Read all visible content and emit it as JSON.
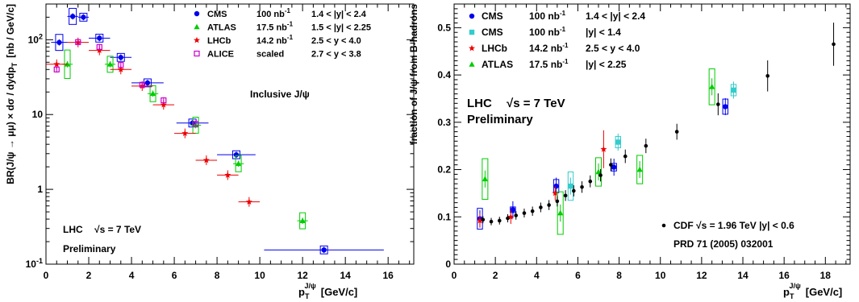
{
  "chart_data": [
    {
      "type": "scatter",
      "ylabel_main": "BR(J/ψ → μμ) × dσ / dydp",
      "ylabel_unit": "[nb / GeV/c]",
      "xlabel": "p",
      "xlabel_sup": "J/ψ",
      "xlabel_unit": "[GeV/c]",
      "xlim": [
        0,
        17.2
      ],
      "ylim": [
        0.1,
        300
      ],
      "yscale": "log",
      "x_ticks": [
        0,
        2,
        4,
        6,
        8,
        10,
        12,
        14,
        16
      ],
      "y_ticks": [
        {
          "value": 0.1,
          "base": "10",
          "exp": "-1"
        },
        {
          "value": 1,
          "label": "1"
        },
        {
          "value": 10,
          "label": "10"
        },
        {
          "value": 100,
          "base": "10",
          "exp": "2"
        }
      ],
      "legend": [
        {
          "exp": "CMS",
          "lumi": "100 nb",
          "lumi_exp": "-1",
          "range": "1.4 < |y| < 2.4",
          "color": "#0000ee",
          "marker": "circle"
        },
        {
          "exp": "ATLAS",
          "lumi": "17.5 nb",
          "lumi_exp": "-1",
          "range": "1.5 < |y| < 2.25",
          "color": "#00cc00",
          "marker": "triangle"
        },
        {
          "exp": "LHCb",
          "lumi": "14.2 nb",
          "lumi_exp": "-1",
          "range": "2.5 < y < 4.0",
          "color": "#ee0000",
          "marker": "star"
        },
        {
          "exp": "ALICE",
          "lumi": "scaled",
          "lumi_exp": "",
          "range": "2.7 < y < 3.8",
          "color": "#cc00cc",
          "marker": "open-square"
        }
      ],
      "annotations": {
        "inclusive": "Inclusive J/ψ",
        "lhc": "LHC",
        "energy": "√s = 7 TeV",
        "prelim": "Preliminary"
      },
      "series": [
        {
          "name": "CMS",
          "color": "#0000ee",
          "marker": "circle",
          "box": true,
          "points": [
            [
              0.62,
              92,
              0.38
            ],
            [
              1.25,
              205,
              0.25
            ],
            [
              1.75,
              200,
              0.25
            ],
            [
              2.5,
              105,
              0.5
            ],
            [
              3.5,
              58,
              0.5
            ],
            [
              4.75,
              26.5,
              0.75
            ],
            [
              6.85,
              7.7,
              0.75
            ],
            [
              8.9,
              2.9,
              0.9
            ],
            [
              13.0,
              0.155,
              2.8
            ]
          ]
        },
        {
          "name": "ATLAS",
          "color": "#00cc00",
          "marker": "triangle",
          "box": true,
          "points": [
            [
              1.0,
              47,
              0.25
            ],
            [
              3.0,
              47,
              0.25
            ],
            [
              5.0,
              19,
              0.25
            ],
            [
              7.0,
              7.2,
              0.25
            ],
            [
              9.0,
              2.2,
              0.25
            ],
            [
              12.0,
              0.38,
              0.25
            ]
          ]
        },
        {
          "name": "LHCb",
          "color": "#ee0000",
          "marker": "star",
          "box": false,
          "points": [
            [
              0.5,
              47,
              0.5
            ],
            [
              1.5,
              92,
              0.5
            ],
            [
              2.5,
              72,
              0.5
            ],
            [
              3.5,
              40,
              0.5
            ],
            [
              4.5,
              24,
              0.5
            ],
            [
              5.5,
              13.5,
              0.5
            ],
            [
              6.5,
              5.6,
              0.5
            ],
            [
              7.5,
              2.45,
              0.5
            ],
            [
              8.5,
              1.55,
              0.5
            ],
            [
              9.5,
              0.68,
              0.5
            ]
          ]
        },
        {
          "name": "ALICE",
          "color": "#cc00cc",
          "marker": "open-square",
          "box": false,
          "points": [
            [
              0.5,
              40,
              0
            ],
            [
              1.5,
              93,
              0
            ],
            [
              2.5,
              80,
              0
            ],
            [
              3.5,
              46,
              0
            ],
            [
              4.5,
              25,
              0
            ],
            [
              5.5,
              15.5,
              0
            ],
            [
              7.0,
              7.5,
              0
            ]
          ]
        }
      ]
    },
    {
      "type": "scatter",
      "ylabel": "fraction of J/ψ from B-hadrons",
      "xlabel": "p",
      "xlabel_sup": "J/ψ",
      "xlabel_unit": "[GeV/c]",
      "xlim": [
        0,
        19.2
      ],
      "ylim": [
        0,
        0.55
      ],
      "x_ticks": [
        0,
        2,
        4,
        6,
        8,
        10,
        12,
        14,
        16,
        18
      ],
      "y_ticks": [
        0,
        0.1,
        0.2,
        0.3,
        0.4,
        0.5
      ],
      "legend": [
        {
          "exp": "CMS",
          "lumi": "100 nb",
          "lumi_exp": "-1",
          "range": "1.4 < |y| < 2.4",
          "color": "#0000ee",
          "marker": "circle"
        },
        {
          "exp": "CMS",
          "lumi": "100 nb",
          "lumi_exp": "-1",
          "range": "|y| < 1.4",
          "color": "#33cccc",
          "marker": "square"
        },
        {
          "exp": "LHCb",
          "lumi": "14.2 nb",
          "lumi_exp": "-1",
          "range": "2.5 < y < 4.0",
          "color": "#ee0000",
          "marker": "star"
        },
        {
          "exp": "ATLAS",
          "lumi": "17.5 nb",
          "lumi_exp": "-1",
          "range": "|y| < 2.25",
          "color": "#00cc00",
          "marker": "triangle"
        }
      ],
      "annotations": {
        "lhc": "LHC",
        "energy": "√s = 7 TeV",
        "prelim": "Preliminary",
        "cdf": "CDF  √s = 1.96 TeV   |y| < 0.6",
        "ref": "PRD 71 (2005) 032001"
      },
      "series": [
        {
          "name": "CMS 1.4<|y|<2.4",
          "color": "#0000ee",
          "marker": "circle",
          "box": true,
          "points": [
            [
              1.25,
              0.096
            ],
            [
              2.85,
              0.115
            ],
            [
              4.95,
              0.165
            ],
            [
              7.75,
              0.205
            ],
            [
              13.15,
              0.333
            ]
          ]
        },
        {
          "name": "CMS |y|<1.4",
          "color": "#33cccc",
          "marker": "square",
          "box": true,
          "points": [
            [
              5.65,
              0.165
            ],
            [
              7.95,
              0.258
            ],
            [
              13.55,
              0.368
            ]
          ]
        },
        {
          "name": "LHCb",
          "color": "#ee0000",
          "marker": "star",
          "box": false,
          "points": [
            [
              1.25,
              0.092
            ],
            [
              2.75,
              0.1
            ],
            [
              4.9,
              0.15
            ],
            [
              7.25,
              0.243
            ]
          ]
        },
        {
          "name": "ATLAS",
          "color": "#00cc00",
          "marker": "triangle",
          "box": true,
          "points": [
            [
              1.5,
              0.18
            ],
            [
              5.15,
              0.108
            ],
            [
              7.0,
              0.195
            ],
            [
              9.0,
              0.2
            ],
            [
              12.5,
              0.375
            ]
          ]
        },
        {
          "name": "CDF",
          "color": "#000000",
          "marker": "dot",
          "box": false,
          "points": [
            [
              1.4,
              0.094
            ],
            [
              1.8,
              0.09
            ],
            [
              2.2,
              0.092
            ],
            [
              2.6,
              0.097
            ],
            [
              3.0,
              0.103
            ],
            [
              3.4,
              0.108
            ],
            [
              3.8,
              0.112
            ],
            [
              4.2,
              0.12
            ],
            [
              4.6,
              0.125
            ],
            [
              5.0,
              0.133
            ],
            [
              5.4,
              0.145
            ],
            [
              5.8,
              0.155
            ],
            [
              6.2,
              0.163
            ],
            [
              6.6,
              0.175
            ],
            [
              7.1,
              0.188
            ],
            [
              7.6,
              0.21
            ],
            [
              8.3,
              0.228
            ],
            [
              9.3,
              0.25
            ],
            [
              10.8,
              0.28
            ],
            [
              12.8,
              0.338
            ],
            [
              15.2,
              0.398
            ],
            [
              18.4,
              0.465
            ]
          ]
        }
      ]
    }
  ]
}
